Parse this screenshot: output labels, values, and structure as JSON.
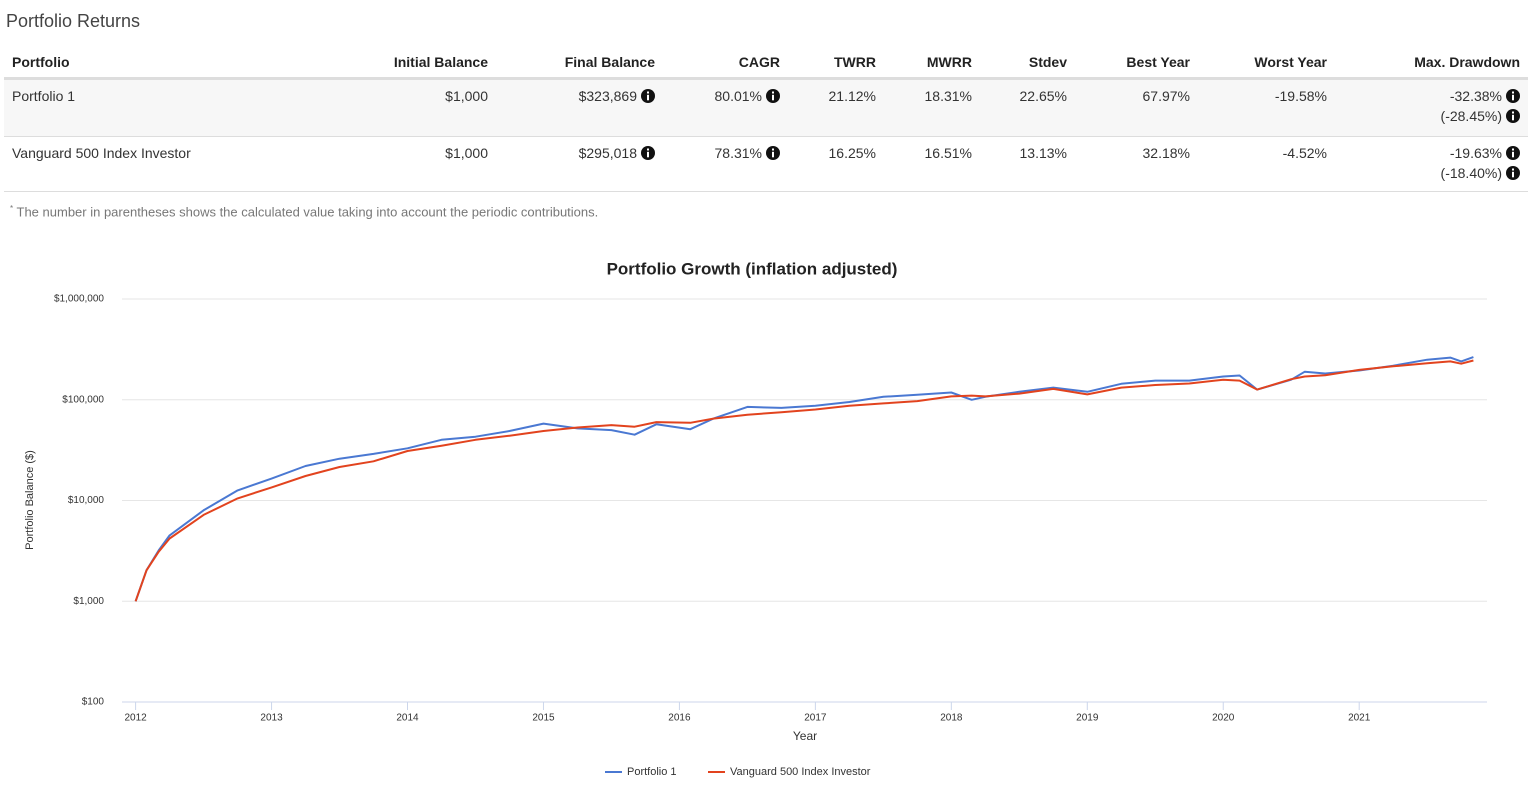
{
  "header": {
    "title": "Portfolio Returns"
  },
  "table": {
    "columns": [
      "Portfolio",
      "Initial Balance",
      "Final Balance",
      "CAGR",
      "TWRR",
      "MWRR",
      "Stdev",
      "Best Year",
      "Worst Year",
      "Max. Drawdown"
    ],
    "rows": [
      [
        "Portfolio 1",
        "$1,000",
        "$323,869",
        "80.01%",
        "21.12%",
        "18.31%",
        "22.65%",
        "67.97%",
        "-19.58%",
        [
          "-32.38%",
          "(-28.45%)"
        ]
      ],
      [
        "Vanguard 500 Index Investor",
        "$1,000",
        "$295,018",
        "78.31%",
        "16.25%",
        "16.51%",
        "13.13%",
        "32.18%",
        "-4.52%",
        [
          "-19.63%",
          "(-18.40%)"
        ]
      ]
    ]
  },
  "footnote_mark": "*",
  "footnote": "The number in parentheses shows the calculated value taking into account the periodic contributions.",
  "chart_data": {
    "type": "line",
    "title": "Portfolio Growth (inflation adjusted)",
    "x_label": "Year",
    "y_label": "Portfolio Balance ($)",
    "y_log": true,
    "grid": true,
    "legend": "bottom",
    "xlim": [
      2011.9,
      2021.94
    ],
    "xticks": [
      2012,
      2013,
      2014,
      2015,
      2016,
      2017,
      2018,
      2019,
      2020,
      2021
    ],
    "ylim": [
      100,
      1000000
    ],
    "yticks": [
      {
        "value": 100,
        "label": "$100"
      },
      {
        "value": 1000,
        "label": "$1,000"
      },
      {
        "value": 10000,
        "label": "$10,000"
      },
      {
        "value": 100000,
        "label": "$100,000"
      },
      {
        "value": 1000000,
        "label": "$1,000,000"
      }
    ],
    "x": [
      2012,
      2012.08,
      2012.17,
      2012.25,
      2012.5,
      2012.75,
      2013,
      2013.25,
      2013.5,
      2013.75,
      2014,
      2014.25,
      2014.5,
      2014.75,
      2015,
      2015.25,
      2015.5,
      2015.67,
      2015.83,
      2016.08,
      2016.25,
      2016.5,
      2016.75,
      2017,
      2017.25,
      2017.5,
      2017.75,
      2018,
      2018.15,
      2018.25,
      2018.5,
      2018.75,
      2019,
      2019.25,
      2019.5,
      2019.75,
      2020,
      2020.12,
      2020.25,
      2020.5,
      2020.6,
      2020.75,
      2021,
      2021.25,
      2021.5,
      2021.67,
      2021.75,
      2021.84
    ],
    "series": [
      {
        "name": "Portfolio 1",
        "color": "#4a78d2",
        "values": [
          1000,
          2030,
          3200,
          4500,
          8000,
          12600,
          16500,
          22000,
          26000,
          29000,
          33000,
          40000,
          43000,
          49000,
          58000,
          52000,
          50000,
          45000,
          57000,
          51000,
          65000,
          85000,
          83000,
          87000,
          95000,
          107000,
          112000,
          118000,
          100000,
          107000,
          120000,
          132000,
          120000,
          144000,
          155000,
          155000,
          170000,
          174000,
          126000,
          158000,
          190000,
          182000,
          195000,
          218000,
          250000,
          262000,
          240000,
          265000
        ]
      },
      {
        "name": "Vanguard 500 Index Investor",
        "color": "#e2431e",
        "values": [
          1000,
          2030,
          3100,
          4200,
          7200,
          10500,
          13500,
          17500,
          21500,
          24500,
          31000,
          35000,
          40000,
          44000,
          49000,
          53000,
          56000,
          54000,
          60000,
          59000,
          65000,
          71000,
          75000,
          80000,
          87000,
          92000,
          97000,
          108000,
          110000,
          108000,
          115000,
          128000,
          113000,
          132000,
          140000,
          145000,
          158000,
          155000,
          126000,
          160000,
          170000,
          175000,
          198000,
          215000,
          230000,
          240000,
          228000,
          245000
        ]
      }
    ]
  }
}
